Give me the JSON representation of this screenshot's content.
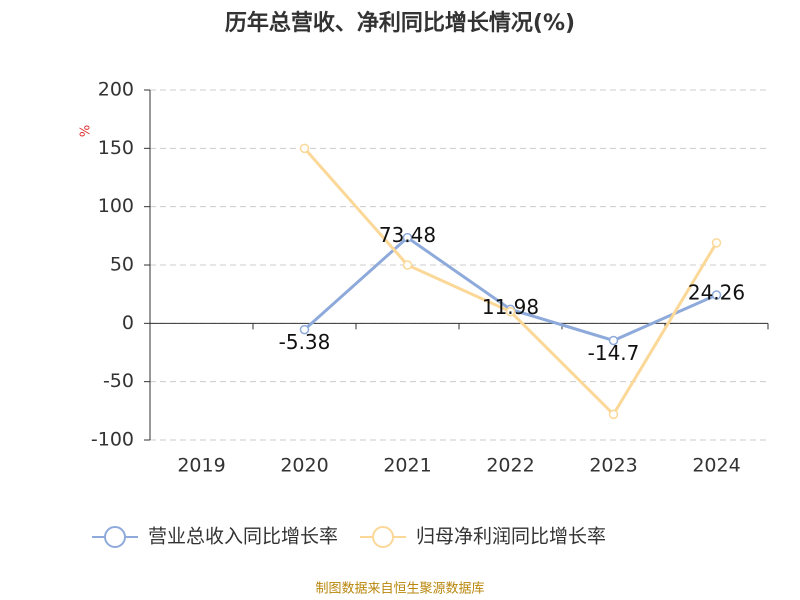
{
  "chart_data": {
    "type": "line",
    "title": "历年总营收、净利同比增长情况(%)",
    "ylabel": "%",
    "source": "制图数据来自恒生聚源数据库",
    "categories": [
      "2019",
      "2020",
      "2021",
      "2022",
      "2023",
      "2024"
    ],
    "series": [
      {
        "name": "营业总收入同比增长率",
        "color": "#8eaadb",
        "values": [
          null,
          -5.38,
          73.48,
          11.98,
          -14.7,
          24.26
        ],
        "show_labels": true
      },
      {
        "name": "归母净利润同比增长率",
        "color": "#fbd898",
        "values": [
          null,
          150,
          50,
          10,
          -78,
          69
        ],
        "show_labels": false
      }
    ],
    "ylim": [
      -100,
      200
    ],
    "yticks": [
      -100,
      -50,
      0,
      50,
      100,
      150,
      200
    ],
    "grid": true,
    "legend": "bottom"
  }
}
